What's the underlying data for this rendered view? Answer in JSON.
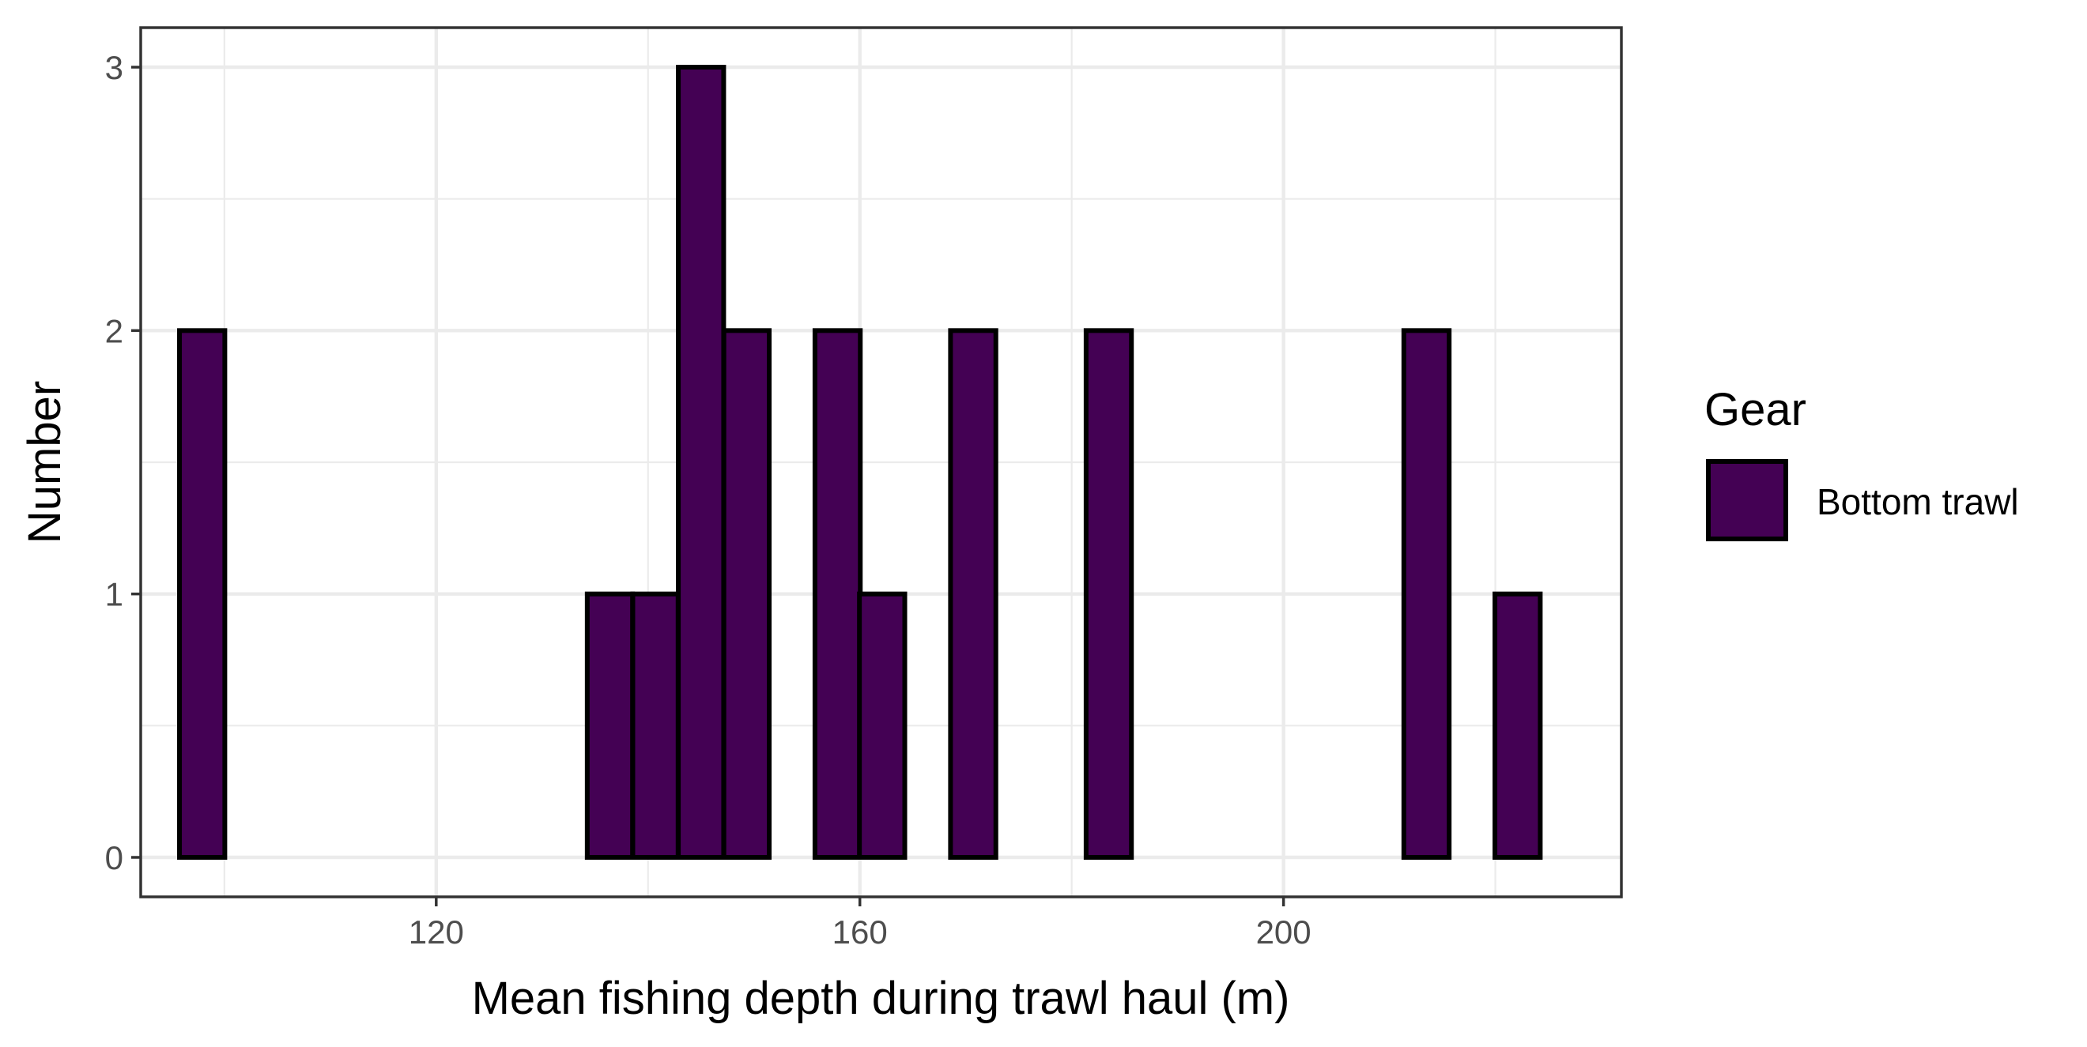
{
  "chart_data": {
    "type": "bar",
    "xlabel": "Mean fishing depth during trawl haul (m)",
    "ylabel": "Number",
    "x_ticks": [
      120,
      160,
      200
    ],
    "y_ticks": [
      0,
      1,
      2,
      3
    ],
    "xlim": [
      92.1,
      231.9
    ],
    "ylim": [
      -0.15,
      3.15
    ],
    "bin_width": 4.28,
    "bins": [
      {
        "x": 97.9,
        "count": 2
      },
      {
        "x": 102.2,
        "count": 0
      },
      {
        "x": 106.5,
        "count": 0
      },
      {
        "x": 110.7,
        "count": 0
      },
      {
        "x": 115.0,
        "count": 0
      },
      {
        "x": 119.3,
        "count": 0
      },
      {
        "x": 123.6,
        "count": 0
      },
      {
        "x": 127.9,
        "count": 0
      },
      {
        "x": 132.2,
        "count": 0
      },
      {
        "x": 136.4,
        "count": 1
      },
      {
        "x": 140.7,
        "count": 1
      },
      {
        "x": 145.0,
        "count": 3
      },
      {
        "x": 149.3,
        "count": 2
      },
      {
        "x": 153.6,
        "count": 0
      },
      {
        "x": 157.9,
        "count": 2
      },
      {
        "x": 162.1,
        "count": 1
      },
      {
        "x": 166.4,
        "count": 0
      },
      {
        "x": 170.7,
        "count": 2
      },
      {
        "x": 175.0,
        "count": 0
      },
      {
        "x": 179.3,
        "count": 0
      },
      {
        "x": 183.5,
        "count": 2
      },
      {
        "x": 187.8,
        "count": 0
      },
      {
        "x": 192.1,
        "count": 0
      },
      {
        "x": 196.4,
        "count": 0
      },
      {
        "x": 200.7,
        "count": 0
      },
      {
        "x": 205.0,
        "count": 0
      },
      {
        "x": 209.2,
        "count": 0
      },
      {
        "x": 213.5,
        "count": 2
      },
      {
        "x": 217.8,
        "count": 0
      },
      {
        "x": 222.1,
        "count": 1
      }
    ],
    "legend": {
      "title": "Gear",
      "entries": [
        {
          "label": "Bottom trawl",
          "color": "#440154"
        }
      ],
      "position": "right"
    },
    "fill_color": "#440154",
    "outline_color": "#000000",
    "grid": true,
    "panel_border": true
  }
}
